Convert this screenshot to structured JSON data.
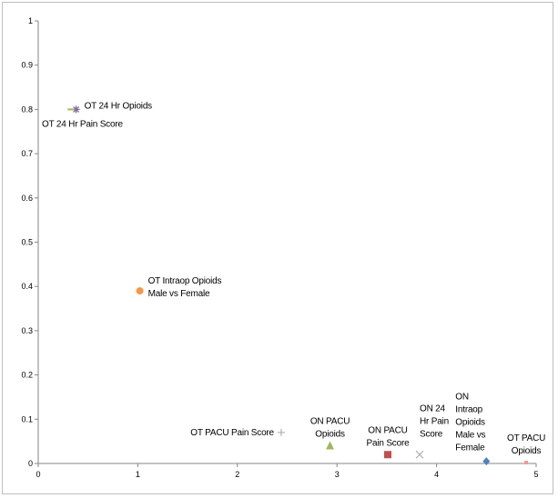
{
  "chart_data": {
    "type": "scatter",
    "title": "",
    "xlabel": "",
    "ylabel": "",
    "xlim": [
      0,
      5
    ],
    "ylim": [
      0,
      1
    ],
    "x_ticks": [
      "0",
      "1",
      "2",
      "3",
      "4",
      "5"
    ],
    "y_ticks": [
      "0",
      "0.1",
      "0.2",
      "0.3",
      "0.4",
      "0.5",
      "0.6",
      "0.7",
      "0.8",
      "0.9",
      "1"
    ],
    "grid": false,
    "legend": "none",
    "points": [
      {
        "label": "OT 24 Hr Opioids",
        "label_lines": [
          "OT 24 Hr Opioids"
        ],
        "label_pos": "right",
        "x": 0.38,
        "y": 0.8,
        "marker": "star",
        "color": "#8064a2"
      },
      {
        "label": "OT 24 Hr Pain Score",
        "label_lines": [
          "OT 24 Hr Pain Score"
        ],
        "label_pos": "below",
        "x": 0.35,
        "y": 0.8,
        "marker": "dash",
        "color": "#9bbb59"
      },
      {
        "label": "OT Intraop Opioids Male vs Female",
        "label_lines": [
          "OT Intraop Opioids",
          "Male vs Female"
        ],
        "label_pos": "right",
        "x": 1.02,
        "y": 0.39,
        "marker": "circle",
        "color": "#f79646"
      },
      {
        "label": "OT PACU Pain Score",
        "label_lines": [
          "OT PACU Pain Score"
        ],
        "label_pos": "left",
        "x": 2.44,
        "y": 0.07,
        "marker": "plus",
        "color": "#a6a6a6"
      },
      {
        "label": "ON PACU Opioids",
        "label_lines": [
          "ON PACU",
          "Opioids"
        ],
        "label_pos": "above",
        "x": 2.93,
        "y": 0.04,
        "marker": "triangle",
        "color": "#9bbb59"
      },
      {
        "label": "ON PACU Pain Score",
        "label_lines": [
          "ON PACU",
          "Pain Score"
        ],
        "label_pos": "above",
        "x": 3.51,
        "y": 0.02,
        "marker": "square",
        "color": "#c0504d"
      },
      {
        "label": "ON 24 Hr Pain Score",
        "label_lines": [
          "ON 24",
          "Hr Pain",
          "Score"
        ],
        "label_pos": "above-right",
        "x": 3.83,
        "y": 0.02,
        "marker": "x",
        "color": "#a6a6a6"
      },
      {
        "label": "ON Intraop Opioids Male vs Female",
        "label_lines": [
          "ON",
          "Intraop",
          "Opioids",
          "Male vs",
          "Female"
        ],
        "label_pos": "above-left",
        "x": 4.5,
        "y": 0.005,
        "marker": "diamond",
        "color": "#4f81bd"
      },
      {
        "label": "OT PACU Opioids",
        "label_lines": [
          "OT PACU",
          "Opioids"
        ],
        "label_pos": "above",
        "x": 4.9,
        "y": 0.002,
        "marker": "small-square",
        "color": "#f79696"
      }
    ]
  }
}
